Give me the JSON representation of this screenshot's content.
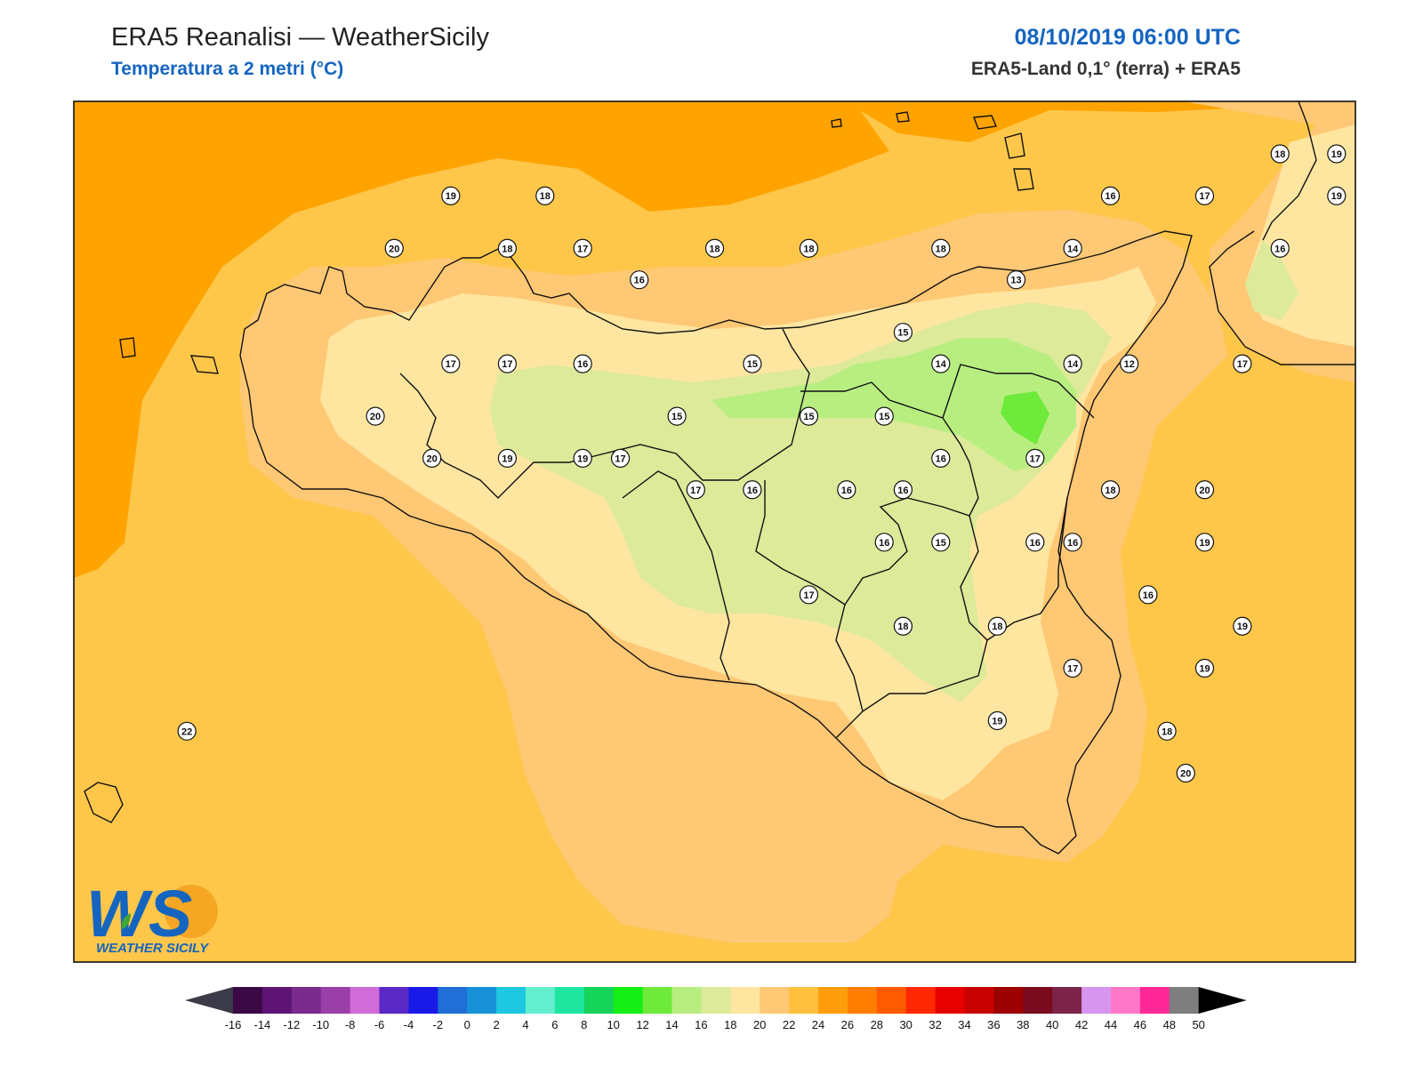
{
  "header": {
    "title": "ERA5 Reanalisi — WeatherSicily",
    "subtitle": "Temperatura a 2 metri (°C)",
    "datetime": "08/10/2019 06:00 UTC",
    "source": "ERA5-Land 0,1° (terra) + ERA5"
  },
  "logo": {
    "letters": "WS",
    "text": "WEATHER SICILY",
    "icon": "weather-sicily-logo-icon"
  },
  "colorbar": {
    "ticks": [
      "-16",
      "-14",
      "-12",
      "-10",
      "-8",
      "-6",
      "-4",
      "-2",
      "0",
      "2",
      "4",
      "6",
      "8",
      "10",
      "12",
      "14",
      "16",
      "18",
      "20",
      "22",
      "24",
      "26",
      "28",
      "30",
      "32",
      "34",
      "36",
      "38",
      "40",
      "42",
      "44",
      "46",
      "48",
      "50"
    ],
    "colors": [
      "#3b0a45",
      "#5e1473",
      "#7b2a8e",
      "#9b3fa8",
      "#d06bd8",
      "#5a28c4",
      "#1a1ae8",
      "#1f6fd6",
      "#1891d8",
      "#1ec8e0",
      "#63efce",
      "#1ee6a0",
      "#16d35a",
      "#14ee14",
      "#6eea3a",
      "#b8ee80",
      "#dcea9a",
      "#ffe6a0",
      "#ffc874",
      "#ffc040",
      "#ff9d0a",
      "#ff7e00",
      "#ff5a00",
      "#ff2800",
      "#e80000",
      "#c80000",
      "#9c0000",
      "#7a0a1e",
      "#7e2448",
      "#d696f0",
      "#ff78c8",
      "#ff2896",
      "#7e7e7e",
      "#3c3c3c"
    ]
  },
  "stations": [
    {
      "x": 20,
      "y": 73,
      "v": "19"
    },
    {
      "x": 17,
      "y": 68,
      "v": "20"
    },
    {
      "x": 23,
      "y": 68,
      "v": "18"
    },
    {
      "x": 25,
      "y": 73,
      "v": "18"
    },
    {
      "x": 27,
      "y": 68,
      "v": "17"
    },
    {
      "x": 30,
      "y": 65,
      "v": "16"
    },
    {
      "x": 20,
      "y": 57,
      "v": "17"
    },
    {
      "x": 23,
      "y": 57,
      "v": "17"
    },
    {
      "x": 27,
      "y": 57,
      "v": "16"
    },
    {
      "x": 16,
      "y": 52,
      "v": "20"
    },
    {
      "x": 19,
      "y": 48,
      "v": "20"
    },
    {
      "x": 23,
      "y": 48,
      "v": "19"
    },
    {
      "x": 27,
      "y": 48,
      "v": "19"
    },
    {
      "x": 29,
      "y": 48,
      "v": "17"
    },
    {
      "x": 32,
      "y": 52,
      "v": "15"
    },
    {
      "x": 33,
      "y": 45,
      "v": "17"
    },
    {
      "x": 36,
      "y": 45,
      "v": "16"
    },
    {
      "x": 34,
      "y": 68,
      "v": "18"
    },
    {
      "x": 36,
      "y": 57,
      "v": "15"
    },
    {
      "x": 39,
      "y": 52,
      "v": "15"
    },
    {
      "x": 41,
      "y": 45,
      "v": "16"
    },
    {
      "x": 43,
      "y": 52,
      "v": "15"
    },
    {
      "x": 39,
      "y": 68,
      "v": "18"
    },
    {
      "x": 46,
      "y": 68,
      "v": "18"
    },
    {
      "x": 44,
      "y": 60,
      "v": "15"
    },
    {
      "x": 46,
      "y": 57,
      "v": "14"
    },
    {
      "x": 46,
      "y": 48,
      "v": "16"
    },
    {
      "x": 44,
      "y": 45,
      "v": "16"
    },
    {
      "x": 50,
      "y": 65,
      "v": "13"
    },
    {
      "x": 53,
      "y": 68,
      "v": "14"
    },
    {
      "x": 55,
      "y": 73,
      "v": "16"
    },
    {
      "x": 53,
      "y": 57,
      "v": "14"
    },
    {
      "x": 56,
      "y": 57,
      "v": "12"
    },
    {
      "x": 51,
      "y": 48,
      "v": "17"
    },
    {
      "x": 55,
      "y": 45,
      "v": "18"
    },
    {
      "x": 60,
      "y": 73,
      "v": "17"
    },
    {
      "x": 64,
      "y": 77,
      "v": "18"
    },
    {
      "x": 67,
      "y": 77,
      "v": "19"
    },
    {
      "x": 67,
      "y": 73,
      "v": "19"
    },
    {
      "x": 64,
      "y": 68,
      "v": "16"
    },
    {
      "x": 62,
      "y": 57,
      "v": "17"
    },
    {
      "x": 60,
      "y": 45,
      "v": "20"
    },
    {
      "x": 60,
      "y": 40,
      "v": "19"
    },
    {
      "x": 57,
      "y": 35,
      "v": "16"
    },
    {
      "x": 62,
      "y": 32,
      "v": "19"
    },
    {
      "x": 51,
      "y": 40,
      "v": "16"
    },
    {
      "x": 46,
      "y": 40,
      "v": "15"
    },
    {
      "x": 43,
      "y": 40,
      "v": "16"
    },
    {
      "x": 39,
      "y": 35,
      "v": "17"
    },
    {
      "x": 44,
      "y": 32,
      "v": "18"
    },
    {
      "x": 49,
      "y": 32,
      "v": "18"
    },
    {
      "x": 53,
      "y": 40,
      "v": "16"
    },
    {
      "x": 53,
      "y": 28,
      "v": "17"
    },
    {
      "x": 58,
      "y": 22,
      "v": "18"
    },
    {
      "x": 60,
      "y": 28,
      "v": "19"
    },
    {
      "x": 49,
      "y": 23,
      "v": "19"
    },
    {
      "x": 59,
      "y": 18,
      "v": "20"
    },
    {
      "x": 6,
      "y": 22,
      "v": "22"
    }
  ]
}
